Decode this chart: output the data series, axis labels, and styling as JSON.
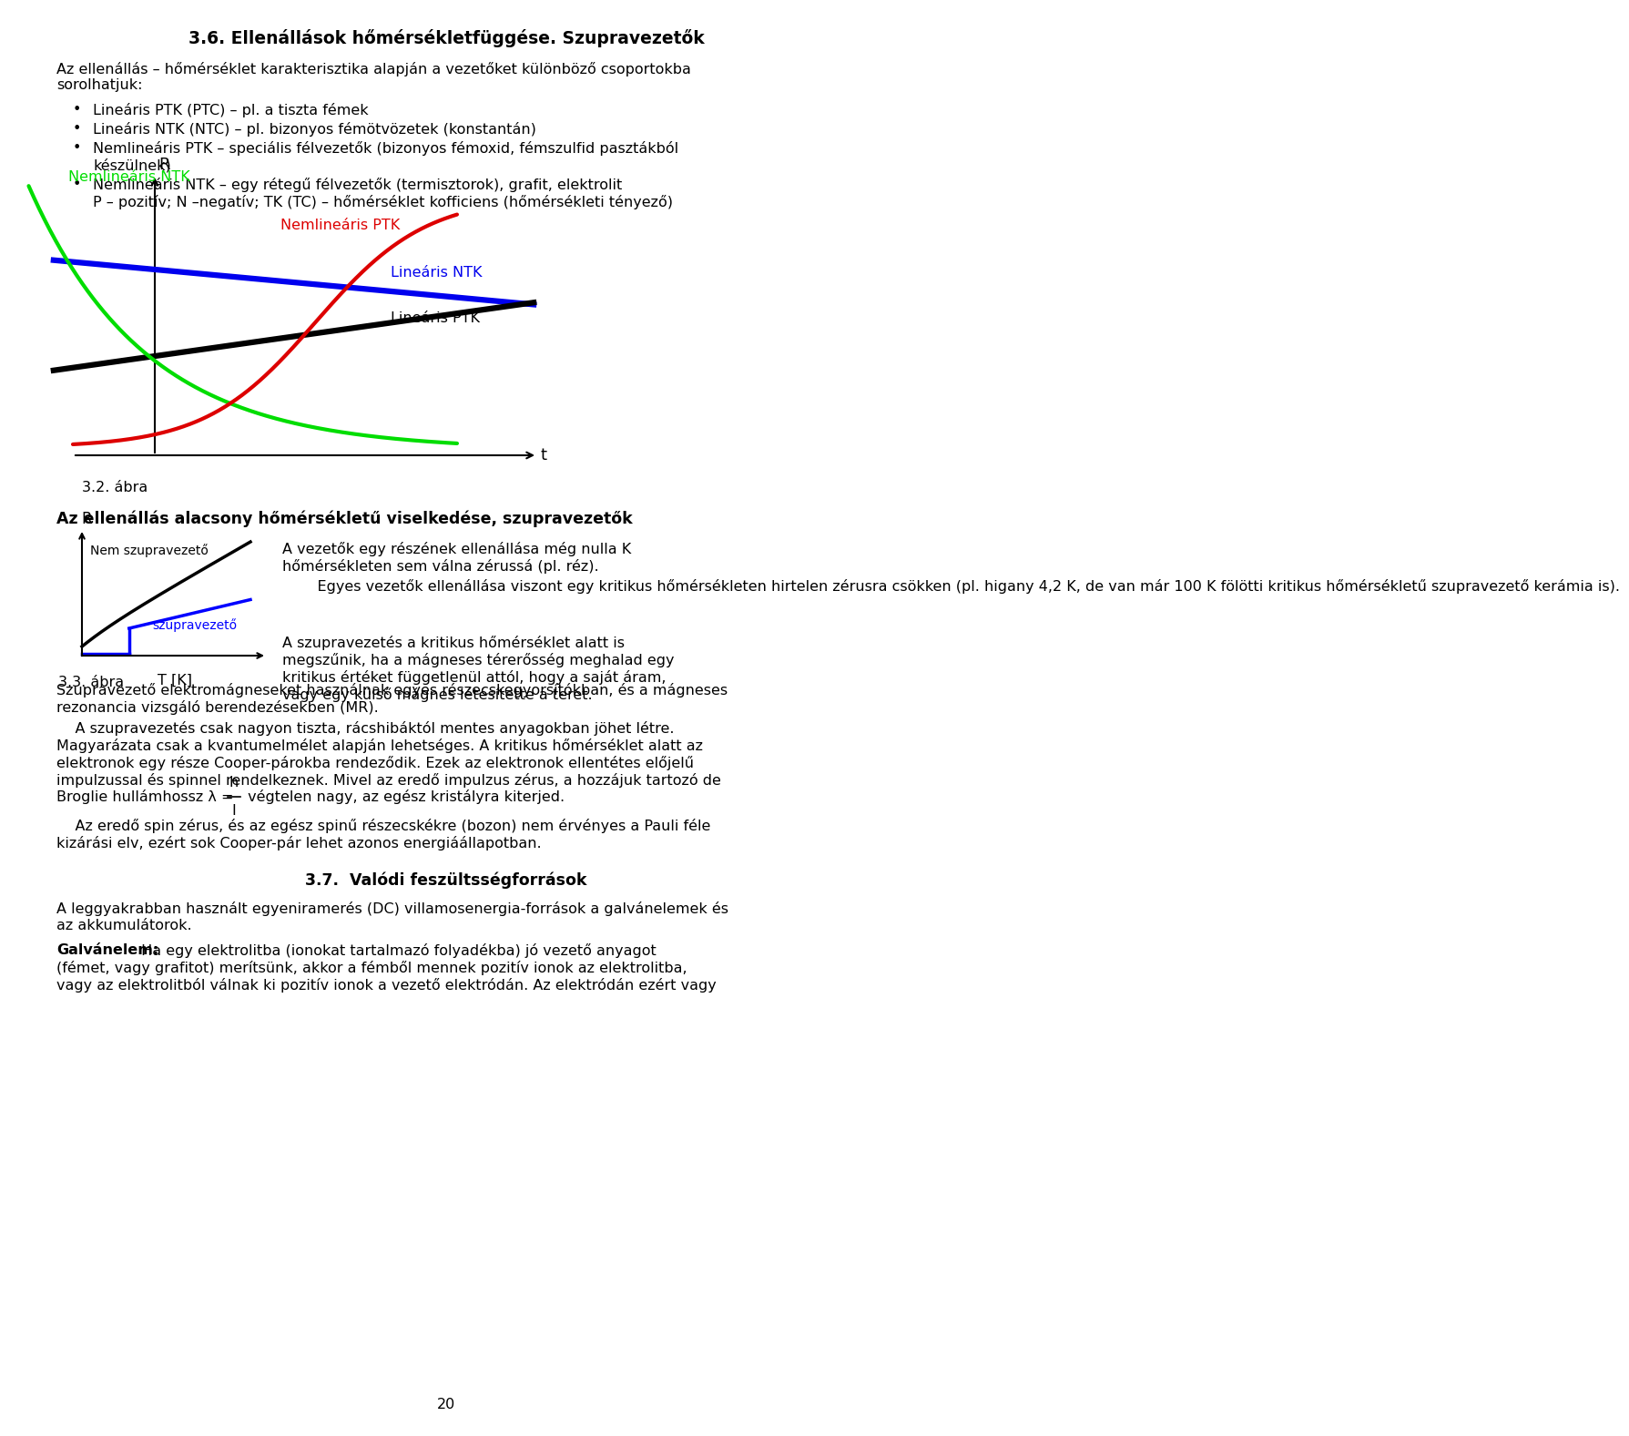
{
  "title": "3.6. Ellenállások hőmérsékletfüggése. Szupravezetők",
  "page_bg": "#ffffff",
  "body_text_1a": "Az ellenállás – hőmérséklet karakterisztika alapján a vezetőket különböző csoportokba",
  "body_text_1b": "sorolhatjuk:",
  "bullet1": "Lineáris PTK (PTC) – pl. a tiszta fémek",
  "bullet2": "Lineáris NTK (NTC) – pl. bizonyos fémötvözetek (konstantán)",
  "bullet3a": "Nemlineáris PTK – speciális félvezetők (bizonyos fémoxid, fémszulfid pasztákból",
  "bullet3b": "készülnek)",
  "bullet4a": "Nemlineáris NTK – egy rétegű félvezetők (termisztorok), grafit, elektrolit",
  "bullet4b": "P – pozitív; N –negatív; TK (TC) – hőmérséklet kofficiens (hőmérsékleti tényező)",
  "fig1_caption": "3.2. ábra",
  "curve_label_NTK_nonlin": "Nemlineáris NTK",
  "curve_label_PTK_nonlin": "Nemlineáris PTK",
  "curve_label_NTK_lin": "Lineáris NTK",
  "curve_label_PTK_lin": "Lineáris PTK",
  "color_NTK_nonlin": "#00dd00",
  "color_PTK_nonlin": "#dd0000",
  "color_NTK_lin": "#0000ee",
  "color_PTK_lin": "#000000",
  "axis_label_R": "R",
  "axis_label_t": "t",
  "section2_title": "Az ellenállás alacsony hőmérsékletű viselkedése, szupravezetők",
  "fig2_caption": "3.3. ábra",
  "fig2_xlabel": "T [K]",
  "fig2_label_nem": "Nem szupravezető",
  "fig2_label_szupra": "szupravezető",
  "fig2_R": "R",
  "col2_p1a": "A vezetők egy részének ellenállása még nulla K",
  "col2_p1b": "hőmérsékleten sem válna zérussá (pl. réz).",
  "col2_p2": "    Egyes vezetők ellenállása viszont egy kritikus hőmérsékleten hirtelen zérusra csökken (pl. higany 4,2 K, de van már 100 K fölötti kritikus hőmérsékletű szupravezető kerámia is).",
  "col2_p3a": "A szupravezetés a kritikus hőmérséklet alatt is",
  "col2_p3b": "megszűnik, ha a mágneses térerősség meghalad egy",
  "col2_p3c": "kritikus értéket függetlenül attól, hogy a saját áram,",
  "col2_p3d": "vagy egy külső mágnes létesítette a teret.",
  "body_p1": "Szupravezető elektromágneseket használnak egyes részecskegyorsítókban, és a mágneses",
  "body_p1b": "rezonancia vizsgáló berendezésekben (MR).",
  "body_p2a": "    A szupravezetés csak nagyon tiszta, rácshibáktól mentes anyagokban jöhet létre.",
  "body_p2b": "Magyarázata csak a kvantumelmélet alapján lehetséges. A kritikus hőmérséklet alatt az",
  "body_p2c": "elektronok egy része Cooper-párokba rendeződik. Ezek az elektronok ellentétes előjelű",
  "body_p2d": "impulzussal és spinnel rendelkeznek. Mivel az eredő impulzus zérus, a hozzájuk tartozó de",
  "broglie_prefix": "Broglie hullámhossz λ = ",
  "broglie_num": "h",
  "broglie_den": "I",
  "broglie_suffix": " végtelen nagy, az egész kristályra kiterjed.",
  "eredő_line": "    Az eredő spin zérus, és az egész spinű részecskékre (bozon) nem érvényes a Pauli féle",
  "eredő_line2": "kizárási elv, ezért sok Cooper-pár lehet azonos energiáállapotban.",
  "section3_title": "3.7.  Valódi feszültsségforrások",
  "s3_p1a": "A leggyakrabban használt egyeniramerés (DC) villamosenergia-források a galvánelemek és",
  "s3_p1b": "az akkumulátorok.",
  "s3_bold": "Galvánelem:",
  "s3_p2": " Ha egy elektrolitba (ionokat tartalmazó folyadékba) jó vezető anyagot",
  "s3_p2b": "(fémet, vagy grafitot) merítsünk, akkor a fémből mennek pozitív ionok az elektrolitba,",
  "s3_p2c": "vagy az elektrolitból válnak ki pozitív ionok a vezető elektródán. Az elektródán ezért vagy",
  "page_number": "20"
}
